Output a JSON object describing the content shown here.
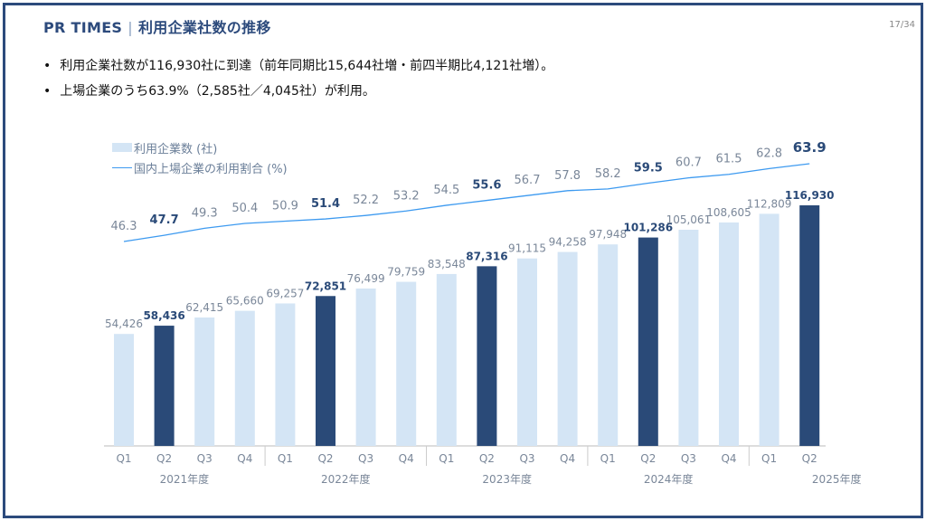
{
  "header": {
    "brand": "PR TIMES",
    "separator": "|",
    "title": "利用企業社数の推移",
    "page_number": "17/34"
  },
  "bullets": [
    "利用企業社数が116,930社に到達（前年同期比15,644社増・前四半期比4,121社増）。",
    "上場企業のうち63.9%（2,585社／4,045社）が利用。"
  ],
  "colors": {
    "frame": "#2c4a7c",
    "bar_highlight": "#2a4a78",
    "bar_normal": "#d4e5f5",
    "line": "#3d9af0",
    "label_normal": "#7a8799",
    "label_highlight": "#2a4a78"
  },
  "chart_data": {
    "type": "bar+line",
    "legend": [
      {
        "label": "利用企業数 (社)",
        "kind": "bar"
      },
      {
        "label": "国内上場企業の利用割合 (%)",
        "kind": "line"
      }
    ],
    "legend_placement": "top-left",
    "categories": [
      "Q1",
      "Q2",
      "Q3",
      "Q4",
      "Q1",
      "Q2",
      "Q3",
      "Q4",
      "Q1",
      "Q2",
      "Q3",
      "Q4",
      "Q1",
      "Q2",
      "Q3",
      "Q4",
      "Q1",
      "Q2"
    ],
    "groups": [
      {
        "label": "2021年度",
        "count": 4
      },
      {
        "label": "2022年度",
        "count": 4
      },
      {
        "label": "2023年度",
        "count": 4
      },
      {
        "label": "2024年度",
        "count": 4
      },
      {
        "label": "2025年度",
        "count": 2
      }
    ],
    "series": [
      {
        "name": "利用企業数 (社)",
        "type": "bar",
        "values": [
          54426,
          58436,
          62415,
          65660,
          69257,
          72851,
          76499,
          79759,
          83548,
          87316,
          91115,
          94258,
          97948,
          101286,
          105061,
          108605,
          112809,
          116930
        ],
        "labels": [
          "54,426",
          "58,436",
          "62,415",
          "65,660",
          "69,257",
          "72,851",
          "76,499",
          "79,759",
          "83,548",
          "87,316",
          "91,115",
          "94,258",
          "97,948",
          "101,286",
          "105,061",
          "108,605",
          "112,809",
          "116,930"
        ]
      },
      {
        "name": "国内上場企業の利用割合 (%)",
        "type": "line",
        "values": [
          46.3,
          47.7,
          49.3,
          50.4,
          50.9,
          51.4,
          52.2,
          53.2,
          54.5,
          55.6,
          56.7,
          57.8,
          58.2,
          59.5,
          60.7,
          61.5,
          62.8,
          63.9
        ],
        "labels": [
          "46.3",
          "47.7",
          "49.3",
          "50.4",
          "50.9",
          "51.4",
          "52.2",
          "53.2",
          "54.5",
          "55.6",
          "56.7",
          "57.8",
          "58.2",
          "59.5",
          "60.7",
          "61.5",
          "62.8",
          "63.9"
        ]
      }
    ],
    "highlighted": [
      false,
      true,
      false,
      false,
      false,
      true,
      false,
      false,
      false,
      true,
      false,
      false,
      false,
      true,
      false,
      false,
      false,
      true
    ],
    "bar_ylim": [
      0,
      120000
    ],
    "grid": false
  }
}
